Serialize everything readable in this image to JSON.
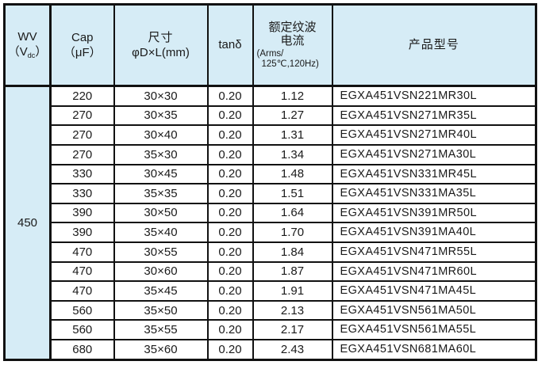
{
  "table": {
    "wv_value": "450",
    "header": {
      "wv_line1": "WV",
      "wv_open": "（V",
      "wv_sub": "dc",
      "wv_close": "）",
      "cap_line1": "Cap",
      "cap_line2": "（μF）",
      "size_line1": "尺寸",
      "size_line2": "φD×L(mm)",
      "tan": "tanδ",
      "ripple_line1": "额定纹波",
      "ripple_line2": "电流",
      "ripple_line3": "(Arms/",
      "ripple_line4": "125℃,120Hz)",
      "model": "产品型号"
    },
    "rows": [
      {
        "cap": "220",
        "size": "30×30",
        "tan": "0.20",
        "ripple": "1.12",
        "model": "EGXA451VSN221MR30L"
      },
      {
        "cap": "270",
        "size": "30×35",
        "tan": "0.20",
        "ripple": "1.27",
        "model": "EGXA451VSN271MR35L"
      },
      {
        "cap": "270",
        "size": "30×40",
        "tan": "0.20",
        "ripple": "1.31",
        "model": "EGXA451VSN271MR40L"
      },
      {
        "cap": "270",
        "size": "35×30",
        "tan": "0.20",
        "ripple": "1.34",
        "model": "EGXA451VSN271MA30L"
      },
      {
        "cap": "330",
        "size": "30×45",
        "tan": "0.20",
        "ripple": "1.48",
        "model": "EGXA451VSN331MR45L"
      },
      {
        "cap": "330",
        "size": "35×35",
        "tan": "0.20",
        "ripple": "1.51",
        "model": "EGXA451VSN331MA35L"
      },
      {
        "cap": "390",
        "size": "30×50",
        "tan": "0.20",
        "ripple": "1.64",
        "model": "EGXA451VSN391MR50L"
      },
      {
        "cap": "390",
        "size": "35×40",
        "tan": "0.20",
        "ripple": "1.70",
        "model": "EGXA451VSN391MA40L"
      },
      {
        "cap": "470",
        "size": "30×55",
        "tan": "0.20",
        "ripple": "1.84",
        "model": "EGXA451VSN471MR55L"
      },
      {
        "cap": "470",
        "size": "30×60",
        "tan": "0.20",
        "ripple": "1.87",
        "model": "EGXA451VSN471MR60L"
      },
      {
        "cap": "470",
        "size": "35×45",
        "tan": "0.20",
        "ripple": "1.91",
        "model": "EGXA451VSN471MA45L"
      },
      {
        "cap": "560",
        "size": "35×50",
        "tan": "0.20",
        "ripple": "2.13",
        "model": "EGXA451VSN561MA50L"
      },
      {
        "cap": "560",
        "size": "35×55",
        "tan": "0.20",
        "ripple": "2.17",
        "model": "EGXA451VSN561MA55L"
      },
      {
        "cap": "680",
        "size": "35×60",
        "tan": "0.20",
        "ripple": "2.43",
        "model": "EGXA451VSN681MA60L"
      }
    ],
    "colors": {
      "header_bg": "#d6ecf6",
      "border": "#111111",
      "text": "#1a1a1a"
    }
  }
}
